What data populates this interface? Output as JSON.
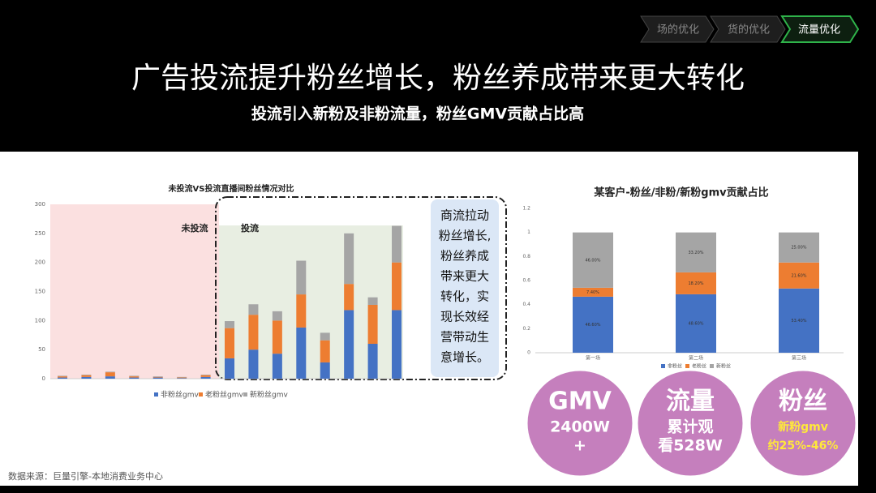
{
  "nav": [
    "场的优化",
    "货的优化",
    "流量优化"
  ],
  "title": "广告投流提升粉丝增长，粉丝养成带来更大转化",
  "subtitle": "投流引入新粉及非粉流量，粉丝GMV贡献占比高",
  "callout": [
    "商流拉动",
    "粉丝增长,",
    "粉丝养成",
    "带来更大",
    "转化，实",
    "现长效经",
    "营带动生",
    "意增长。"
  ],
  "circles": [
    {
      "title": "GMV",
      "lines": [
        "2400W",
        "+"
      ]
    },
    {
      "title": "流量",
      "lines": [
        "累计观",
        "看528W"
      ]
    },
    {
      "title": "粉丝",
      "lines": [
        "新粉gmv",
        "约25%-46%"
      ]
    }
  ],
  "source": "数据来源：巨量引擎-本地消费业务中心",
  "chart_data": [
    {
      "type": "bar",
      "stacked": true,
      "title": "未投流VS投流直播间粉丝情况对比",
      "annotations": [
        "未投流",
        "投流"
      ],
      "categories": [
        null,
        null,
        null,
        null,
        null,
        null,
        null,
        null,
        null,
        null,
        null,
        null,
        null,
        null,
        null
      ],
      "series": [
        {
          "name": "非粉丝gmv",
          "color": "#4472c4",
          "values": [
            2,
            3,
            4,
            2,
            2,
            1,
            3,
            35,
            50,
            43,
            88,
            28,
            118,
            60,
            118
          ]
        },
        {
          "name": "老粉丝gmv",
          "color": "#ed7d31",
          "values": [
            2,
            3,
            7,
            2,
            1,
            1,
            3,
            52,
            60,
            57,
            57,
            38,
            45,
            67,
            82
          ]
        },
        {
          "name": "新粉丝gmv",
          "color": "#a5a5a5",
          "values": [
            1,
            1,
            1,
            1,
            1,
            1,
            1,
            12,
            18,
            16,
            58,
            13,
            87,
            13,
            63
          ]
        }
      ],
      "ylim": [
        0,
        300
      ],
      "yticks": [
        0,
        50,
        100,
        150,
        200,
        250,
        300
      ],
      "grid": false
    },
    {
      "type": "bar",
      "stacked": true,
      "title": "某客户-粉丝/非粉/新粉gmv贡献占比",
      "categories": [
        "第一场",
        "第二场",
        "第三场"
      ],
      "series": [
        {
          "name": "非粉丝",
          "color": "#4472c4",
          "values": [
            0.466,
            0.486,
            0.534
          ],
          "value_labels": [
            "46.60%",
            "48.60%",
            "53.40%"
          ]
        },
        {
          "name": "老粉丝",
          "color": "#ed7d31",
          "values": [
            0.074,
            0.182,
            0.216
          ],
          "value_labels": [
            "7.40%",
            "18.20%",
            "21.60%"
          ]
        },
        {
          "name": "新粉丝",
          "color": "#a5a5a5",
          "values": [
            0.46,
            0.332,
            0.25
          ],
          "value_labels": [
            "46.00%",
            "33.20%",
            "25.00%"
          ]
        }
      ],
      "ylim": [
        0,
        1.2
      ],
      "yticks": [
        0,
        0.2,
        0.4,
        0.6,
        0.8,
        1,
        1.2
      ],
      "grid": false
    }
  ]
}
